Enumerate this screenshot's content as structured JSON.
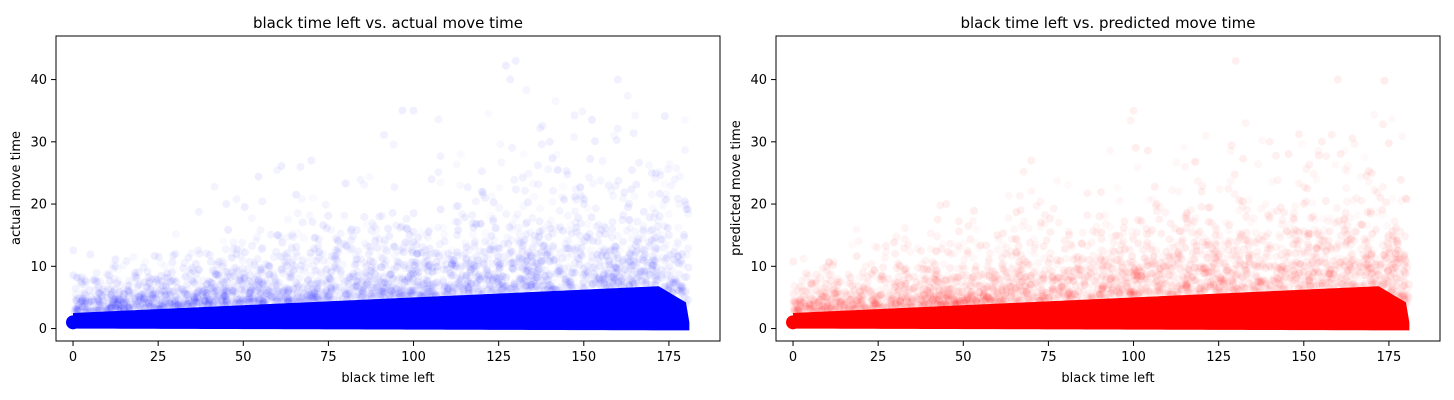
{
  "chart_data": [
    {
      "type": "scatter",
      "title": "black time left vs. actual move time",
      "xlabel": "black time left",
      "ylabel": "actual move time",
      "xlim": [
        -5,
        190
      ],
      "ylim": [
        -2,
        47
      ],
      "xticks": [
        0,
        25,
        50,
        75,
        100,
        125,
        150,
        175
      ],
      "yticks": [
        0,
        10,
        20,
        30,
        40
      ],
      "color": "#0000ff",
      "marker_alpha": 0.02,
      "grid": false,
      "description_of_density": "dense band near 0–7 rising with time left; sparse points up to ~45",
      "series": [
        {
          "points": [
            [
              0,
              0.5
            ],
            [
              0,
              1.5
            ],
            [
              5,
              2
            ],
            [
              10,
              2.5
            ],
            [
              15,
              3
            ],
            [
              20,
              2.5
            ],
            [
              25,
              3
            ],
            [
              30,
              3.5
            ],
            [
              40,
              4
            ],
            [
              50,
              4
            ],
            [
              60,
              4.5
            ],
            [
              75,
              5
            ],
            [
              90,
              5.5
            ],
            [
              100,
              6
            ],
            [
              110,
              6.5
            ],
            [
              125,
              7
            ],
            [
              140,
              7
            ],
            [
              150,
              7.5
            ],
            [
              160,
              7.5
            ],
            [
              170,
              7
            ],
            [
              180,
              4
            ],
            [
              30,
              12
            ],
            [
              60,
              15
            ],
            [
              90,
              18
            ],
            [
              120,
              22
            ],
            [
              150,
              20
            ],
            [
              170,
              25
            ],
            [
              140,
              30
            ],
            [
              100,
              35
            ],
            [
              160,
              40
            ],
            [
              130,
              43
            ],
            [
              70,
              27
            ],
            [
              45,
              20
            ],
            [
              175,
              15
            ]
          ]
        }
      ]
    },
    {
      "type": "scatter",
      "title": "black time left vs. predicted move time",
      "xlabel": "black time left",
      "ylabel": "predicted move time",
      "xlim": [
        -5,
        190
      ],
      "ylim": [
        -2,
        47
      ],
      "xticks": [
        0,
        25,
        50,
        75,
        100,
        125,
        150,
        175
      ],
      "yticks": [
        0,
        10,
        20,
        30,
        40
      ],
      "color": "#ff0000",
      "marker_alpha": 0.02,
      "grid": false,
      "description_of_density": "dense band near 0–7 rising with time left; sparse points up to ~45",
      "series": [
        {
          "points": [
            [
              0,
              0.5
            ],
            [
              0,
              1.5
            ],
            [
              5,
              2
            ],
            [
              10,
              2.5
            ],
            [
              15,
              3
            ],
            [
              20,
              3
            ],
            [
              25,
              3.5
            ],
            [
              30,
              3.5
            ],
            [
              40,
              4
            ],
            [
              50,
              4.5
            ],
            [
              60,
              4.5
            ],
            [
              75,
              5
            ],
            [
              90,
              5.5
            ],
            [
              100,
              6
            ],
            [
              110,
              6
            ],
            [
              125,
              6.5
            ],
            [
              140,
              7
            ],
            [
              150,
              7
            ],
            [
              160,
              7.5
            ],
            [
              170,
              7
            ],
            [
              180,
              4
            ],
            [
              30,
              12
            ],
            [
              60,
              15
            ],
            [
              90,
              18
            ],
            [
              120,
              22
            ],
            [
              150,
              20
            ],
            [
              170,
              25
            ],
            [
              140,
              30
            ],
            [
              100,
              35
            ],
            [
              160,
              40
            ],
            [
              130,
              43
            ],
            [
              70,
              27
            ],
            [
              45,
              20
            ],
            [
              175,
              15
            ]
          ]
        }
      ]
    }
  ]
}
